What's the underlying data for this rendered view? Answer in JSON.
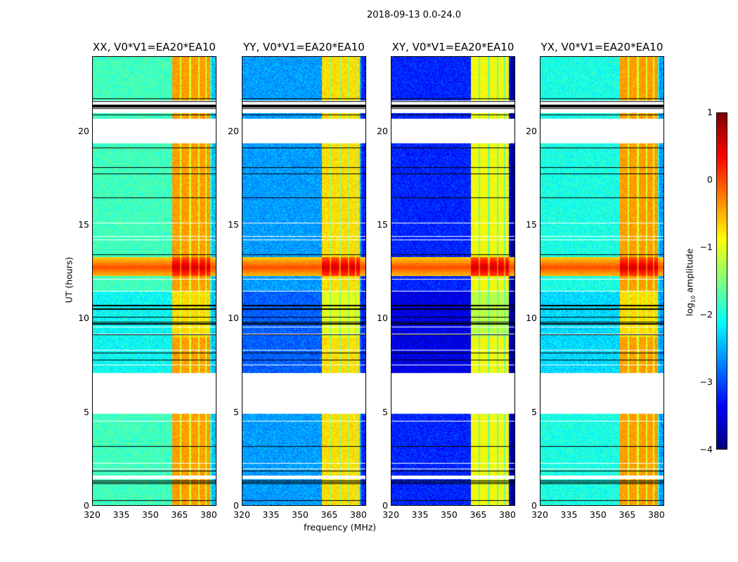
{
  "chart_data": {
    "type": "heatmap",
    "title": "2018-09-13 0.0-24.0",
    "xlabel": "frequency (MHz)",
    "ylabel": "UT (hours)",
    "xlim": [
      320,
      384
    ],
    "ylim": [
      0,
      24
    ],
    "xticks": [
      "320",
      "335",
      "350",
      "365",
      "380"
    ],
    "xtick_values": [
      320,
      335,
      350,
      365,
      380
    ],
    "yticks": [
      "0",
      "5",
      "10",
      "15",
      "20"
    ],
    "ytick_values": [
      0,
      5,
      10,
      15,
      20
    ],
    "panels": [
      {
        "title": "XX, V0*V1=EA20*EA10",
        "base_log_amp": -1.8,
        "rfi_log_amp": -0.4
      },
      {
        "title": "YY, V0*V1=EA20*EA10",
        "base_log_amp": -2.6,
        "rfi_log_amp": -0.7
      },
      {
        "title": "XY, V0*V1=EA20*EA10",
        "base_log_amp": -3.2,
        "rfi_log_amp": -0.9
      },
      {
        "title": "YX, V0*V1=EA20*EA10",
        "base_log_amp": -2.0,
        "rfi_log_amp": -0.4
      }
    ],
    "rfi_channels_mhz": [
      [
        361,
        365
      ],
      [
        366,
        370
      ],
      [
        371,
        374.5
      ],
      [
        375.5,
        378.5
      ],
      [
        379,
        381
      ]
    ],
    "blank_ut_ranges": [
      [
        4.9,
        7.1
      ],
      [
        19.4,
        20.7
      ],
      [
        21.1,
        21.25
      ],
      [
        21.45,
        21.6
      ],
      [
        1.4,
        1.6
      ]
    ],
    "broadband_burst_ut": [
      12.3,
      13.3
    ],
    "dense_flag_ut": [
      9.6,
      11.4
    ],
    "colorbar": {
      "label": "log10 amplitude",
      "label_main": "log",
      "label_sub": "10",
      "label_rest": " amplitude",
      "range": [
        -4,
        1
      ],
      "ticks": [
        "1",
        "0",
        "−1",
        "−2",
        "−3",
        "−4"
      ],
      "tick_values": [
        1,
        0,
        -1,
        -2,
        -3,
        -4
      ],
      "colormap": "jet"
    }
  }
}
